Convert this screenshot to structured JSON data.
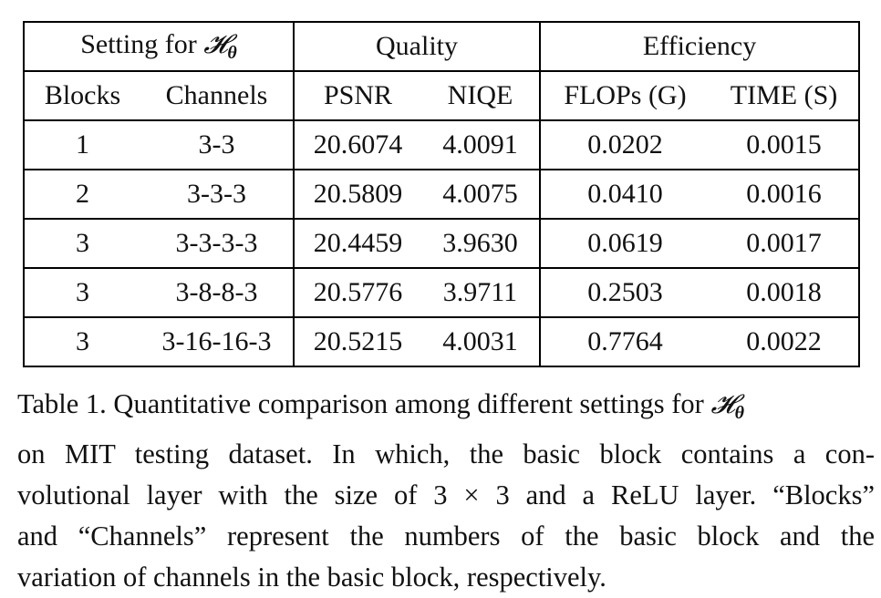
{
  "table": {
    "group_headers": {
      "setting_prefix": "Setting for ",
      "setting_symbol": "𝓗",
      "setting_subscript": "θ",
      "quality": "Quality",
      "efficiency": "Efficiency"
    },
    "column_headers": [
      "Blocks",
      "Channels",
      "PSNR",
      "NIQE",
      "FLOPs (G)",
      "TIME (S)"
    ],
    "rows": [
      [
        "1",
        "3-3",
        "20.6074",
        "4.0091",
        "0.0202",
        "0.0015"
      ],
      [
        "2",
        "3-3-3",
        "20.5809",
        "4.0075",
        "0.0410",
        "0.0016"
      ],
      [
        "3",
        "3-3-3-3",
        "20.4459",
        "3.9630",
        "0.0619",
        "0.0017"
      ],
      [
        "3",
        "3-8-8-3",
        "20.5776",
        "3.9711",
        "0.2503",
        "0.0018"
      ],
      [
        "3",
        "3-16-16-3",
        "20.5215",
        "4.0031",
        "0.7764",
        "0.0022"
      ]
    ]
  },
  "caption": {
    "line1_prefix": "Table 1. Quantitative comparison among different settings for ",
    "line1_symbol": "𝓗",
    "line1_subscript": "θ",
    "line2": "on MIT testing dataset.  In which, the basic block contains a con-",
    "line3": "volutional layer with the size of 3 × 3 and a ReLU layer. “Blocks”",
    "line4": "and “Channels” represent the numbers of the basic block and the",
    "line5": "variation of channels in the basic block, respectively."
  }
}
